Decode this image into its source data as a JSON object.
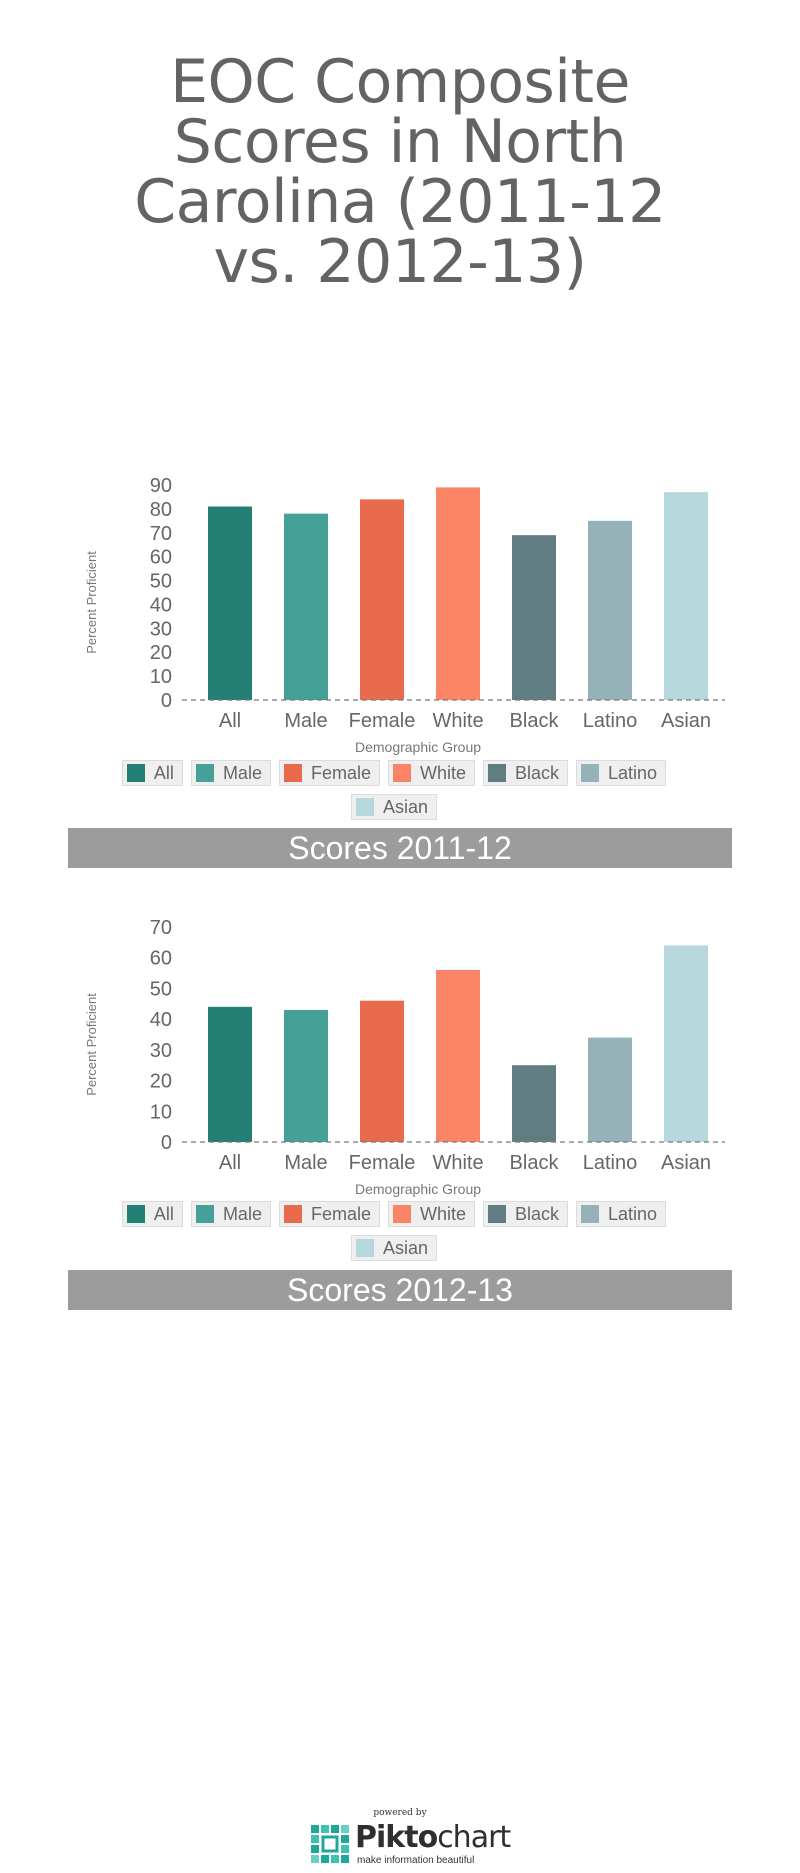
{
  "title_lines": [
    "EOC Composite",
    "Scores in North",
    "Carolina (2011-12",
    "vs. 2012-13)"
  ],
  "colors": {
    "All": "#237f73",
    "Male": "#45a097",
    "Female": "#e86b4d",
    "White": "#f98466",
    "Black": "#607d82",
    "Latino": "#94b2b7",
    "Asian": "#b6d7dc",
    "banner": "#9c9c9c",
    "text": "#666666"
  },
  "chart_data": [
    {
      "type": "bar",
      "title": "Scores 2011-12",
      "xlabel": "Demographic Group",
      "ylabel": "Percent Proficient",
      "categories": [
        "All",
        "Male",
        "Female",
        "White",
        "Black",
        "Latino",
        "Asian"
      ],
      "legend": [
        "All",
        "Male",
        "Female",
        "White",
        "Black",
        "Latino",
        "Asian"
      ],
      "values": [
        81,
        78,
        84,
        89,
        69,
        75,
        87
      ],
      "yticks": [
        0,
        10,
        20,
        30,
        40,
        50,
        60,
        70,
        80,
        90
      ],
      "ylim": [
        0,
        90
      ],
      "grid": false,
      "legend_position": "bottom"
    },
    {
      "type": "bar",
      "title": "Scores 2012-13",
      "xlabel": "Demographic Group",
      "ylabel": "Percent Proficient",
      "categories": [
        "All",
        "Male",
        "Female",
        "White",
        "Black",
        "Latino",
        "Asian"
      ],
      "legend": [
        "All",
        "Male",
        "Female",
        "White",
        "Black",
        "Latino",
        "Asian"
      ],
      "values": [
        44,
        43,
        46,
        56,
        25,
        34,
        64
      ],
      "yticks": [
        0,
        10,
        20,
        30,
        40,
        50,
        60,
        70
      ],
      "ylim": [
        0,
        70
      ],
      "grid": false,
      "legend_position": "bottom"
    }
  ],
  "footer": {
    "powered_by": "powered by",
    "brand_bold": "Pikto",
    "brand_rest": "chart",
    "tagline": "make information beautiful",
    "logo_icon": "piktochart-logo-icon"
  }
}
